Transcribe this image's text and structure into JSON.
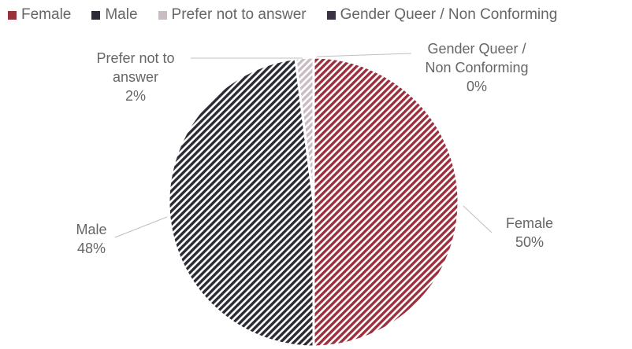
{
  "chart_data": {
    "type": "pie",
    "title": "",
    "legend_position": "top",
    "slices": [
      {
        "name": "Female",
        "value": 50,
        "label_lines": [
          "Female",
          "50%"
        ],
        "color": "#9c2f3e"
      },
      {
        "name": "Male",
        "value": 48,
        "label_lines": [
          "Male",
          "48%"
        ],
        "color": "#2b2b35"
      },
      {
        "name": "Prefer not to answer",
        "value": 2,
        "label_lines": [
          "Prefer not to",
          "answer",
          "2%"
        ],
        "color": "#c9bcc4"
      },
      {
        "name": "Gender Queer / Non Conforming",
        "value": 0,
        "label_lines": [
          "Gender Queer /",
          "Non Conforming",
          "0%"
        ],
        "color": "#3a3344"
      }
    ]
  }
}
